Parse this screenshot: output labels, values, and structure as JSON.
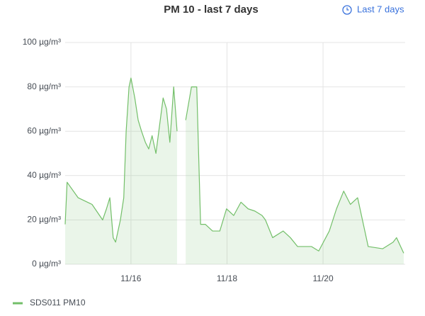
{
  "toolbar": {
    "time_range": "Last 7 days"
  },
  "chart_data": {
    "type": "line",
    "title": "PM 10 - last 7 days",
    "x": [
      14.63,
      14.67,
      14.9,
      15.19,
      15.41,
      15.49,
      15.56,
      15.63,
      15.68,
      15.78,
      15.85,
      15.9,
      15.96,
      16.0,
      16.08,
      16.15,
      16.22,
      16.3,
      16.37,
      16.44,
      16.52,
      16.67,
      16.74,
      16.81,
      16.89,
      16.96,
      17.05,
      17.14,
      17.26,
      17.37,
      17.45,
      17.55,
      17.7,
      17.85,
      17.99,
      18.14,
      18.29,
      18.44,
      18.58,
      18.73,
      18.8,
      18.95,
      19.17,
      19.32,
      19.47,
      19.76,
      19.91,
      20.13,
      20.28,
      20.43,
      20.57,
      20.72,
      20.87,
      20.94,
      21.24,
      21.46,
      21.53,
      21.68
    ],
    "series": [
      {
        "name": "SDS011 PM10",
        "color": "#73bf69",
        "values": [
          18,
          37,
          30,
          27,
          20,
          25,
          30,
          12,
          10,
          20,
          30,
          60,
          80,
          84,
          75,
          65,
          60,
          55,
          52,
          58,
          50,
          75,
          70,
          55,
          80,
          60,
          null,
          65,
          80,
          80,
          18,
          18,
          15,
          15,
          25,
          22,
          28,
          25,
          24,
          22,
          20,
          12,
          15,
          12,
          8,
          8,
          6,
          15,
          25,
          33,
          27,
          30,
          15,
          8,
          7,
          10,
          12,
          5
        ]
      }
    ],
    "xlim": [
      14.63,
      21.71
    ],
    "xticks": [
      {
        "value": 16,
        "label": "11/16"
      },
      {
        "value": 18,
        "label": "11/18"
      },
      {
        "value": 20,
        "label": "11/20"
      }
    ],
    "ylim": [
      0,
      100
    ],
    "yticks": [
      {
        "value": 0,
        "label": "0 µg/m³"
      },
      {
        "value": 20,
        "label": "20 µg/m³"
      },
      {
        "value": 40,
        "label": "40 µg/m³"
      },
      {
        "value": 60,
        "label": "60 µg/m³"
      },
      {
        "value": 80,
        "label": "80 µg/m³"
      },
      {
        "value": 100,
        "label": "100 µg/m³"
      }
    ],
    "grid": true
  }
}
